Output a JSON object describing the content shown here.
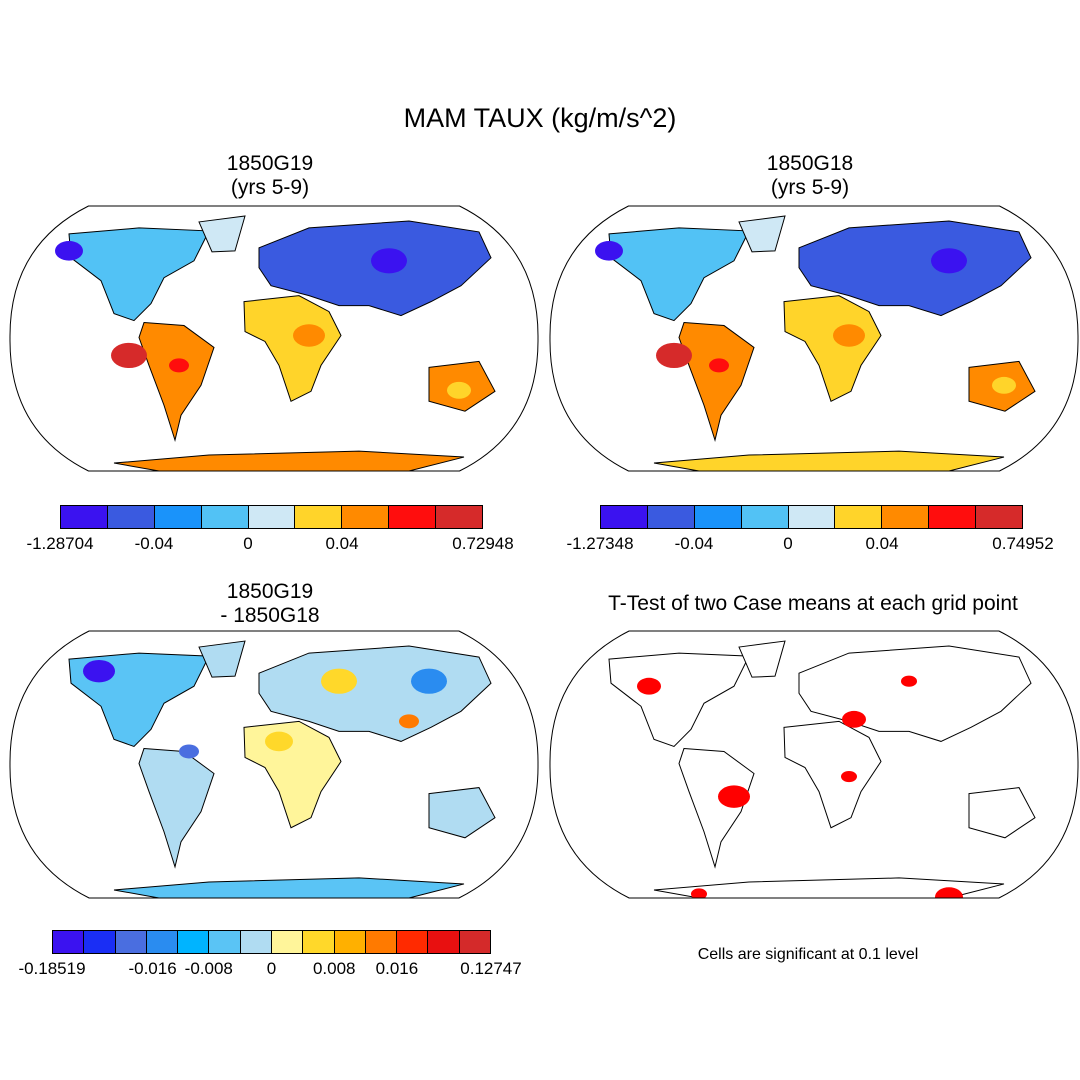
{
  "title": "MAM TAUX (kg/m/s^2)",
  "panels": [
    {
      "title1": "1850G19",
      "title2": "(yrs 5-9)"
    },
    {
      "title1": "1850G18",
      "title2": "(yrs 5-9)"
    },
    {
      "title1": "1850G19",
      "title2": "- 1850G18"
    },
    {
      "title1": "T-Test of two Case means at each grid point"
    }
  ],
  "note": "Cells are significant at 0.1 level",
  "chart_data": [
    {
      "type": "heatmap",
      "title": "1850G19 (yrs 5-9)",
      "projection": "Robinson",
      "colorbar": {
        "colors": [
          "#3b12f0",
          "#3a5ae0",
          "#1a93fa",
          "#52c2f5",
          "#cfe8f5",
          "#ffd42a",
          "#ff8a00",
          "#ff0d0d",
          "#d62a2a"
        ],
        "labels": [
          "-1.28704",
          "-0.04",
          "0",
          "0.04",
          "0.72948"
        ],
        "label_boundaries": [
          0,
          2,
          4,
          6,
          9
        ]
      }
    },
    {
      "type": "heatmap",
      "title": "1850G18 (yrs 5-9)",
      "projection": "Robinson",
      "colorbar": {
        "colors": [
          "#3b12f0",
          "#3a5ae0",
          "#1a93fa",
          "#52c2f5",
          "#cfe8f5",
          "#ffd42a",
          "#ff8a00",
          "#ff0d0d",
          "#d62a2a"
        ],
        "labels": [
          "-1.27348",
          "-0.04",
          "0",
          "0.04",
          "0.74952"
        ],
        "label_boundaries": [
          0,
          2,
          4,
          6,
          9
        ]
      }
    },
    {
      "type": "heatmap",
      "title": "1850G19 - 1850G18",
      "projection": "Robinson",
      "colorbar": {
        "colors": [
          "#3b12f0",
          "#1a2ef5",
          "#4a6ee0",
          "#2a8cf0",
          "#00b4ff",
          "#5ac4f5",
          "#b0dcf2",
          "#fff59a",
          "#ffd82a",
          "#ffb000",
          "#ff7a00",
          "#ff2a00",
          "#e81010",
          "#d42a2a"
        ],
        "labels": [
          "-0.18519",
          "-0.016",
          "-0.008",
          "0",
          "0.008",
          "0.016",
          "0.12747"
        ],
        "label_boundaries": [
          0,
          4,
          5,
          7,
          9,
          11,
          14
        ]
      }
    },
    {
      "type": "heatmap",
      "title": "T-Test of two Case means at each grid point",
      "projection": "Robinson",
      "significance_level": 0.1,
      "color": "#ff0000"
    }
  ]
}
